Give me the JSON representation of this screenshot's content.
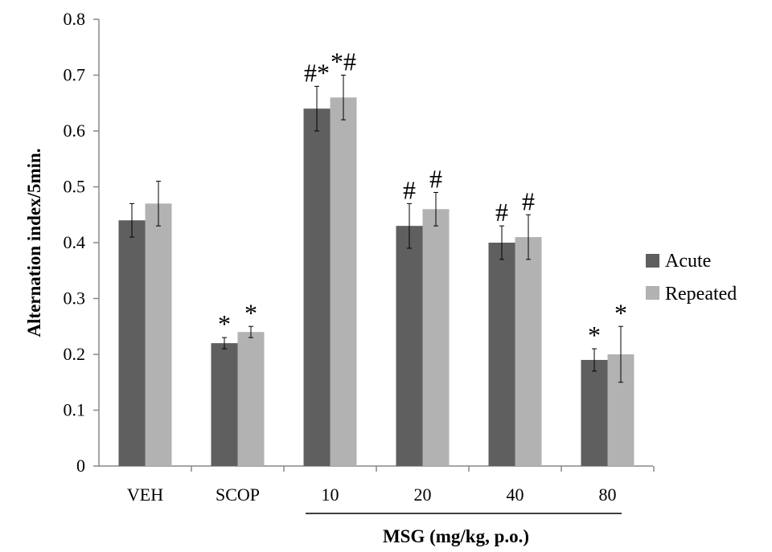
{
  "chart_data": {
    "type": "bar",
    "categories": [
      "VEH",
      "SCOP",
      "10",
      "20",
      "40",
      "80"
    ],
    "series": [
      {
        "name": "Acute",
        "color": "#5f5f5f",
        "values": [
          0.44,
          0.22,
          0.64,
          0.43,
          0.4,
          0.19
        ],
        "errors": [
          0.03,
          0.01,
          0.04,
          0.04,
          0.03,
          0.02
        ],
        "annotations": [
          "",
          "*",
          "#*",
          "#",
          "#",
          "*"
        ]
      },
      {
        "name": "Repeated",
        "color": "#b2b2b2",
        "values": [
          0.47,
          0.24,
          0.66,
          0.46,
          0.41,
          0.2
        ],
        "errors": [
          0.04,
          0.01,
          0.04,
          0.03,
          0.04,
          0.05
        ],
        "annotations": [
          "",
          "*",
          "*#",
          "#",
          "#",
          "*"
        ]
      }
    ],
    "ylabel": "Alternation index/5min.",
    "xlabel": "",
    "group_label": "MSG (mg/kg, p.o.)",
    "group_label_spans": [
      "10",
      "20",
      "40",
      "80"
    ],
    "ylim": [
      0,
      0.8
    ],
    "yticks": [
      "0",
      "0.1",
      "0.2",
      "0.3",
      "0.4",
      "0.5",
      "0.6",
      "0.7",
      "0.8"
    ],
    "grid": false,
    "legend_position": "right"
  }
}
